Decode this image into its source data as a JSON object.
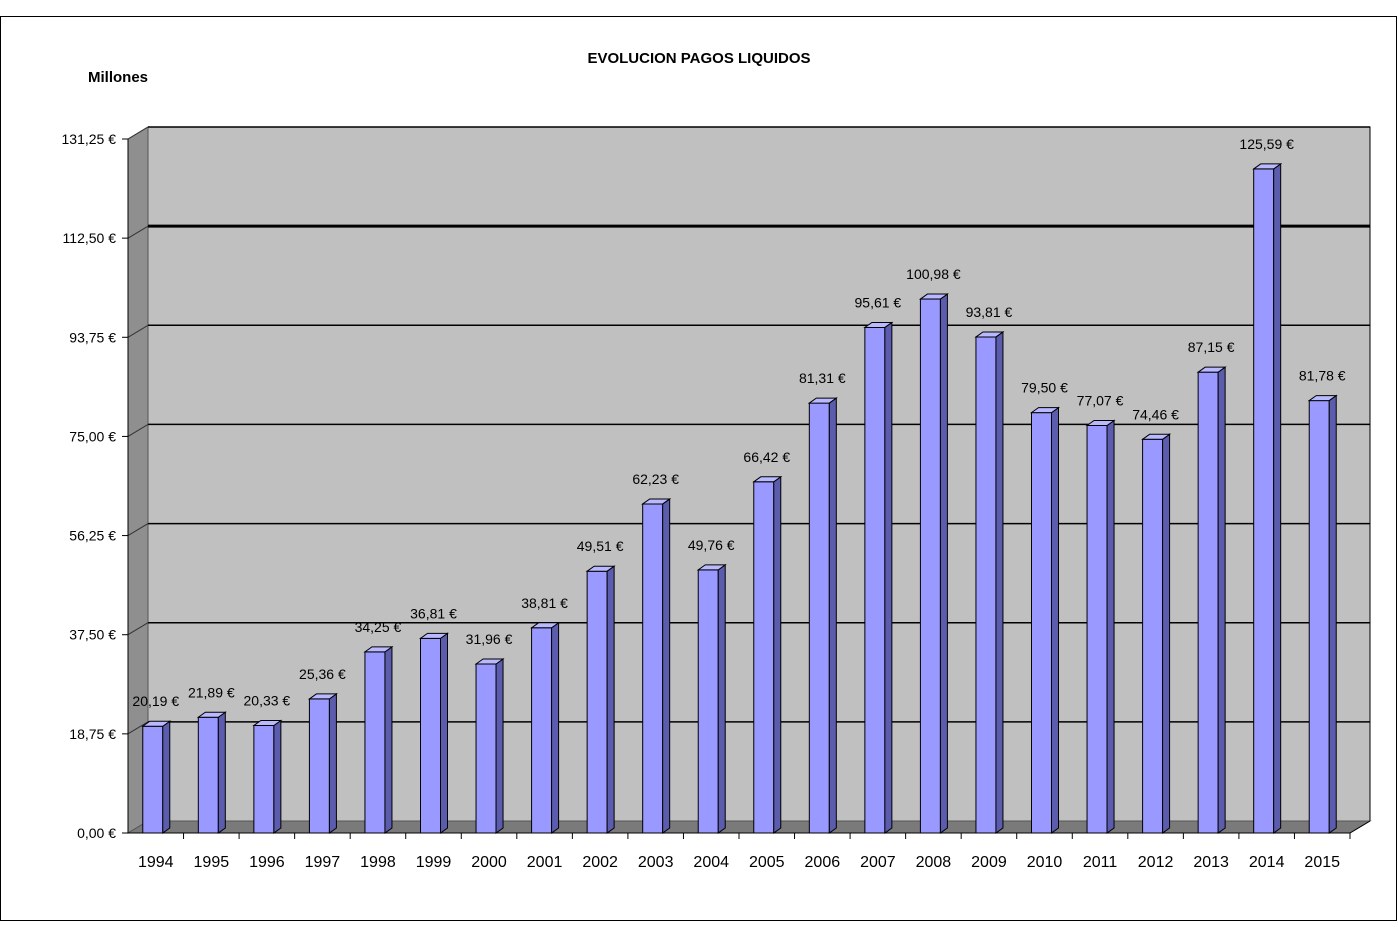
{
  "chart_data": {
    "type": "bar",
    "title": "EVOLUCION PAGOS LIQUIDOS",
    "unit_label": "Millones",
    "xlabel": "",
    "ylabel": "",
    "ylim": [
      0,
      131.25
    ],
    "y_ticks": [
      "0,00 €",
      "18,75 €",
      "37,50 €",
      "56,25 €",
      "75,00 €",
      "93,75 €",
      "112,50 €",
      "131,25 €"
    ],
    "y_tick_values": [
      0,
      18.75,
      37.5,
      56.25,
      75,
      93.75,
      112.5,
      131.25
    ],
    "categories": [
      "1994",
      "1995",
      "1996",
      "1997",
      "1998",
      "1999",
      "2000",
      "2001",
      "2002",
      "2003",
      "2004",
      "2005",
      "2006",
      "2007",
      "2008",
      "2009",
      "2010",
      "2011",
      "2012",
      "2013",
      "2014",
      "2015"
    ],
    "values": [
      20.19,
      21.89,
      20.33,
      25.36,
      34.25,
      36.81,
      31.96,
      38.81,
      49.51,
      62.23,
      49.76,
      66.42,
      81.31,
      95.61,
      100.98,
      93.81,
      79.5,
      77.07,
      74.46,
      87.15,
      125.59,
      81.78
    ],
    "data_labels": [
      "20,19 €",
      "21,89 €",
      "20,33 €",
      "25,36 €",
      "34,25 €",
      "36,81 €",
      "31,96 €",
      "38,81 €",
      "49,51 €",
      "62,23 €",
      "49,76 €",
      "66,42 €",
      "81,31 €",
      "95,61 €",
      "100,98 €",
      "93,81 €",
      "79,50 €",
      "77,07 €",
      "74,46 €",
      "87,15 €",
      "125,59 €",
      "81,78 €"
    ],
    "grid": true,
    "legend": "none",
    "colors": {
      "bar_front": "#9999ff",
      "bar_side": "#5c5cae",
      "bar_top": "#b9b9ff",
      "plot_back": "#c0c0c0",
      "plot_wall": "#8f8f8f",
      "plot_floor": "#7a7a7a",
      "gridline": "#000000"
    }
  }
}
